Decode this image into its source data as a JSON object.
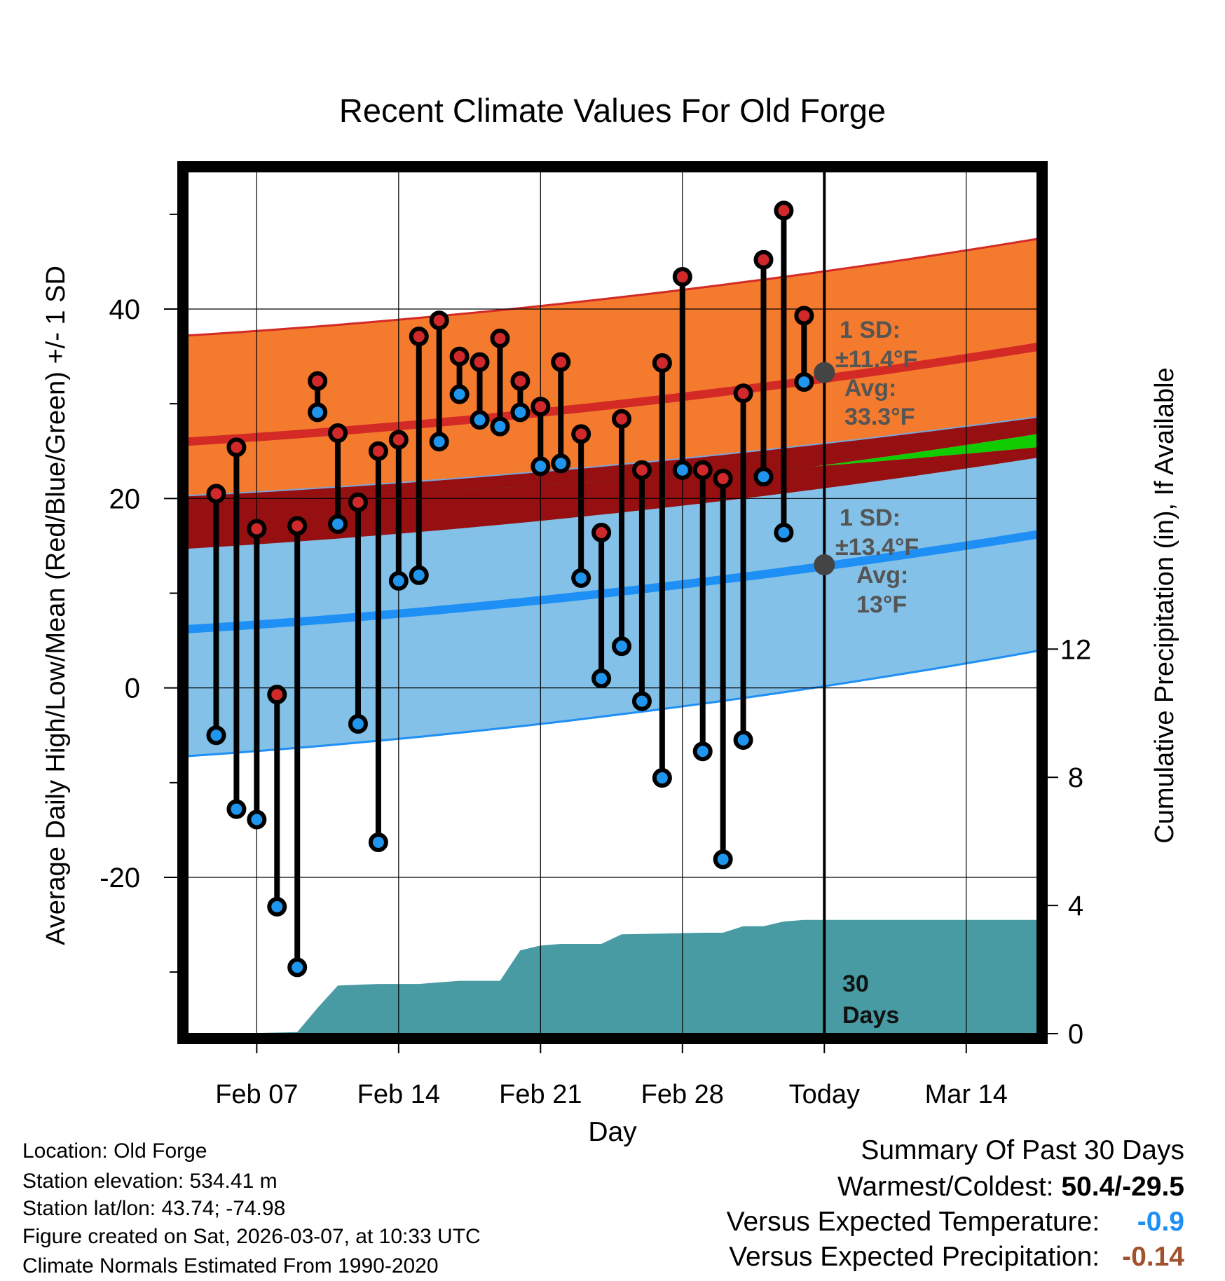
{
  "chart_data": {
    "type": "line",
    "title": "Recent Climate Values For Old Forge",
    "xlabel": "Day",
    "ylabel": "Average Daily High/Low/Mean (Red/Blue/Green) +/- 1 SD",
    "ylabel_right": "Cumulative Precipitation (in), If Available",
    "x_ticks": [
      {
        "day": 7,
        "label": "Feb 07"
      },
      {
        "day": 14,
        "label": "Feb 14"
      },
      {
        "day": 21,
        "label": "Feb 21"
      },
      {
        "day": 28,
        "label": "Feb 28"
      },
      {
        "day": 35,
        "label": "Today"
      },
      {
        "day": 42,
        "label": "Mar 14"
      }
    ],
    "xlim": [
      3.6,
      45.5
    ],
    "ylim": [
      -36.5,
      54.5
    ],
    "y_ticks": [
      -20,
      0,
      20,
      40
    ],
    "y2lim": [
      0,
      26.9
    ],
    "y2_ticks": [
      0,
      4,
      8,
      12
    ],
    "today_day": 35,
    "normals": {
      "high_mean": {
        "start": 26.0,
        "end": 36.0
      },
      "high_upper": {
        "start": 37.2,
        "end": 47.4
      },
      "high_lower": {
        "start": 14.7,
        "end": 24.3
      },
      "mean_upper": {
        "start": 20.3,
        "end": 28.6
      },
      "green_upper": {
        "start": 17.0,
        "end": 26.8
      },
      "low_mean": {
        "start": 6.2,
        "end": 16.2
      },
      "low_upper": {
        "start": 19.6,
        "end": 25.4
      },
      "low_lower": {
        "start": -7.2,
        "end": 3.9
      }
    },
    "daily": [
      {
        "day": 5,
        "high": 20.5,
        "low": -5.0
      },
      {
        "day": 6,
        "high": 25.4,
        "low": -12.8
      },
      {
        "day": 7,
        "high": 16.8,
        "low": -13.9
      },
      {
        "day": 8,
        "high": -0.7,
        "low": -23.1
      },
      {
        "day": 9,
        "high": 17.1,
        "low": -29.5
      },
      {
        "day": 10,
        "high": 32.4,
        "low": 29.1
      },
      {
        "day": 11,
        "high": 26.9,
        "low": 17.3
      },
      {
        "day": 12,
        "high": 19.6,
        "low": -3.8
      },
      {
        "day": 13,
        "high": 25.0,
        "low": -16.3
      },
      {
        "day": 14,
        "high": 26.2,
        "low": 11.3
      },
      {
        "day": 15,
        "high": 37.1,
        "low": 11.9
      },
      {
        "day": 16,
        "high": 38.8,
        "low": 26.0
      },
      {
        "day": 17,
        "high": 35.0,
        "low": 31.0
      },
      {
        "day": 18,
        "high": 34.4,
        "low": 28.3
      },
      {
        "day": 19,
        "high": 36.9,
        "low": 27.6
      },
      {
        "day": 20,
        "high": 32.4,
        "low": 29.1
      },
      {
        "day": 21,
        "high": 29.7,
        "low": 23.4
      },
      {
        "day": 22,
        "high": 34.4,
        "low": 23.7
      },
      {
        "day": 23,
        "high": 26.8,
        "low": 11.6
      },
      {
        "day": 24,
        "high": 16.4,
        "low": 1.0
      },
      {
        "day": 25,
        "high": 28.4,
        "low": 4.4
      },
      {
        "day": 26,
        "high": 23.0,
        "low": -1.4
      },
      {
        "day": 27,
        "high": 34.3,
        "low": -9.5
      },
      {
        "day": 28,
        "high": 43.4,
        "low": 23.0
      },
      {
        "day": 29,
        "high": 23.0,
        "low": -6.7
      },
      {
        "day": 30,
        "high": 22.1,
        "low": -18.1
      },
      {
        "day": 31,
        "high": 31.1,
        "low": -5.5
      },
      {
        "day": 32,
        "high": 45.2,
        "low": 22.3
      },
      {
        "day": 33,
        "high": 50.4,
        "low": 16.4
      },
      {
        "day": 34,
        "high": 39.3,
        "low": 32.3
      }
    ],
    "precip_cumulative": {
      "days": [
        3.6,
        5,
        7,
        9,
        10,
        11,
        13,
        15,
        17,
        19,
        20,
        21,
        22,
        24,
        25,
        27,
        29,
        30,
        31,
        32,
        33,
        34,
        35,
        45.5
      ],
      "values": [
        0,
        0,
        0.02,
        0.05,
        0.8,
        1.5,
        1.55,
        1.55,
        1.65,
        1.65,
        2.6,
        2.75,
        2.8,
        2.8,
        3.1,
        3.12,
        3.15,
        3.15,
        3.35,
        3.35,
        3.5,
        3.55,
        3.55,
        3.55
      ]
    },
    "annotations": {
      "high": {
        "sd_label": "1 SD:",
        "sd_value": "±11.4°F",
        "avg_label": "Avg:",
        "avg_value": "33.3°F",
        "avg": 33.3
      },
      "low": {
        "sd_label": "1 SD:",
        "sd_value": "±13.4°F",
        "avg_label": "Avg:",
        "avg_value": "13°F",
        "avg": 13.0
      },
      "days_label": [
        "30",
        "Days"
      ]
    },
    "colors": {
      "high_band": "#F47A2E",
      "high_line": "#D32A26",
      "mean_band": "#960F11",
      "green_band": "#11CC00",
      "low_band": "#83C1E8",
      "low_line": "#1E8FF5",
      "precip": "#489AA3",
      "high_marker": "#D0282B",
      "low_marker": "#2095EE",
      "annotation": "#555555"
    }
  },
  "station_info": {
    "location": "Location: Old Forge",
    "elevation": "Station elevation: 534.41 m",
    "latlon": "Station lat/lon: 43.74; -74.98",
    "created": "Figure created on Sat, 2026-03-07, at 10:33 UTC",
    "normals": "Climate Normals Estimated From 1990-2020"
  },
  "summary": {
    "title": "Summary Of Past 30 Days",
    "warm_cold_label": "Warmest/Coldest:",
    "warm_cold_value": "50.4/-29.5",
    "temp_label": "Versus Expected Temperature:",
    "temp_value": "-0.9",
    "temp_color": "#1E8FF5",
    "precip_label": "Versus Expected Precipitation:",
    "precip_value": "-0.14",
    "precip_color": "#A0522D"
  }
}
